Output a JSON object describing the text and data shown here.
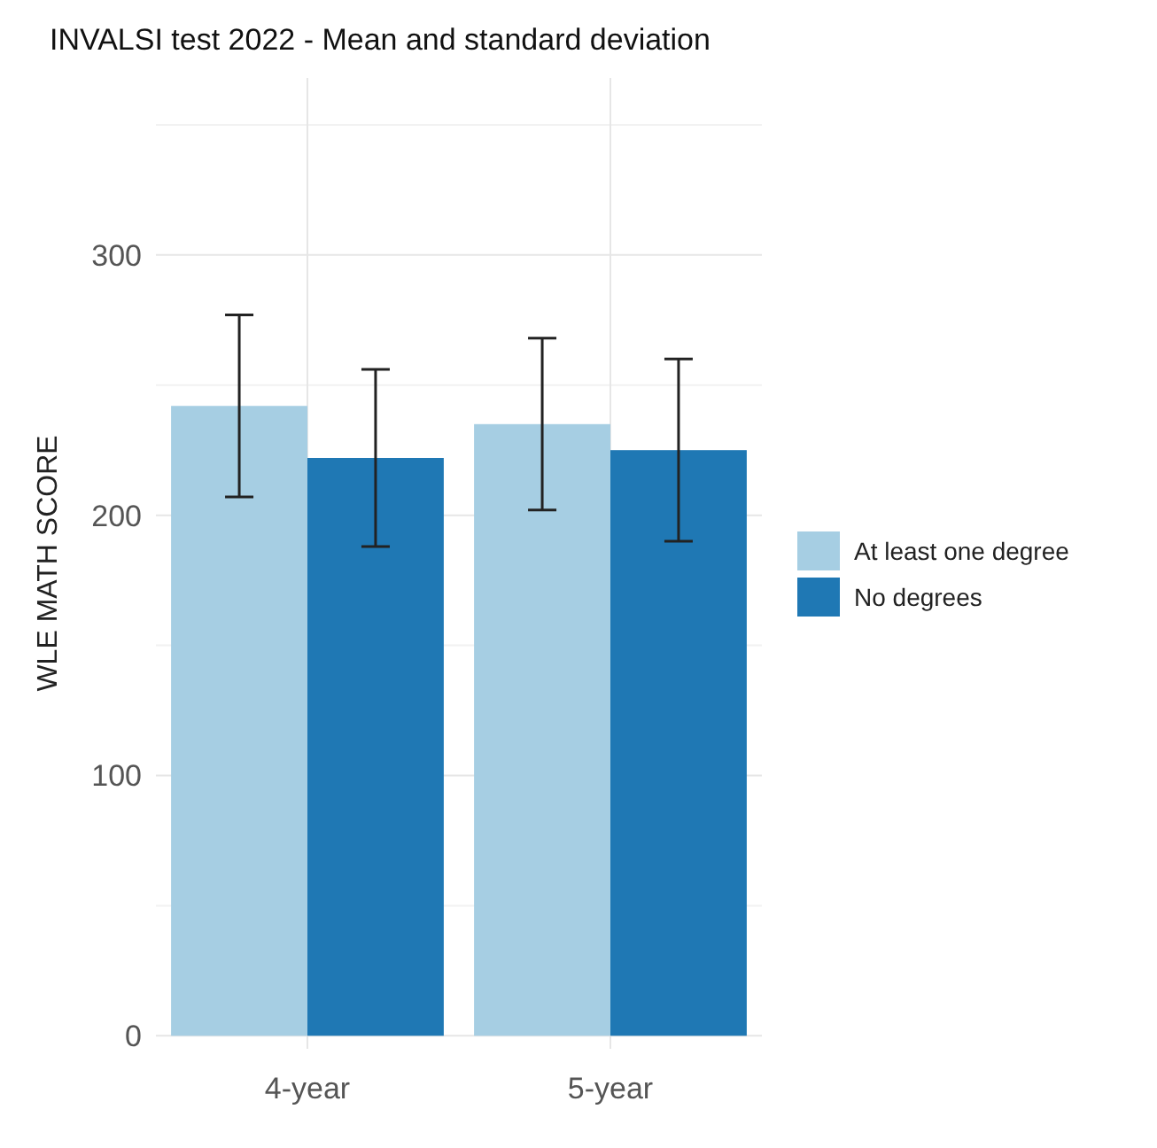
{
  "chart_data": {
    "type": "bar",
    "title": "INVALSI test 2022 - Mean and standard deviation",
    "ylabel": "WLE MATH SCORE",
    "categories": [
      "4-year",
      "5-year"
    ],
    "series": [
      {
        "name": "At least one degree",
        "color": "#a6cee3",
        "values": [
          242,
          235
        ],
        "errors": [
          [
            207,
            277
          ],
          [
            202,
            268
          ]
        ]
      },
      {
        "name": "No degrees",
        "color": "#1f78b4",
        "values": [
          222,
          225
        ],
        "errors": [
          [
            188,
            256
          ],
          [
            190,
            260
          ]
        ]
      }
    ],
    "ylim": [
      -5,
      368
    ],
    "yticks": [
      0,
      100,
      200,
      300
    ],
    "grid": true,
    "legend": "right"
  }
}
